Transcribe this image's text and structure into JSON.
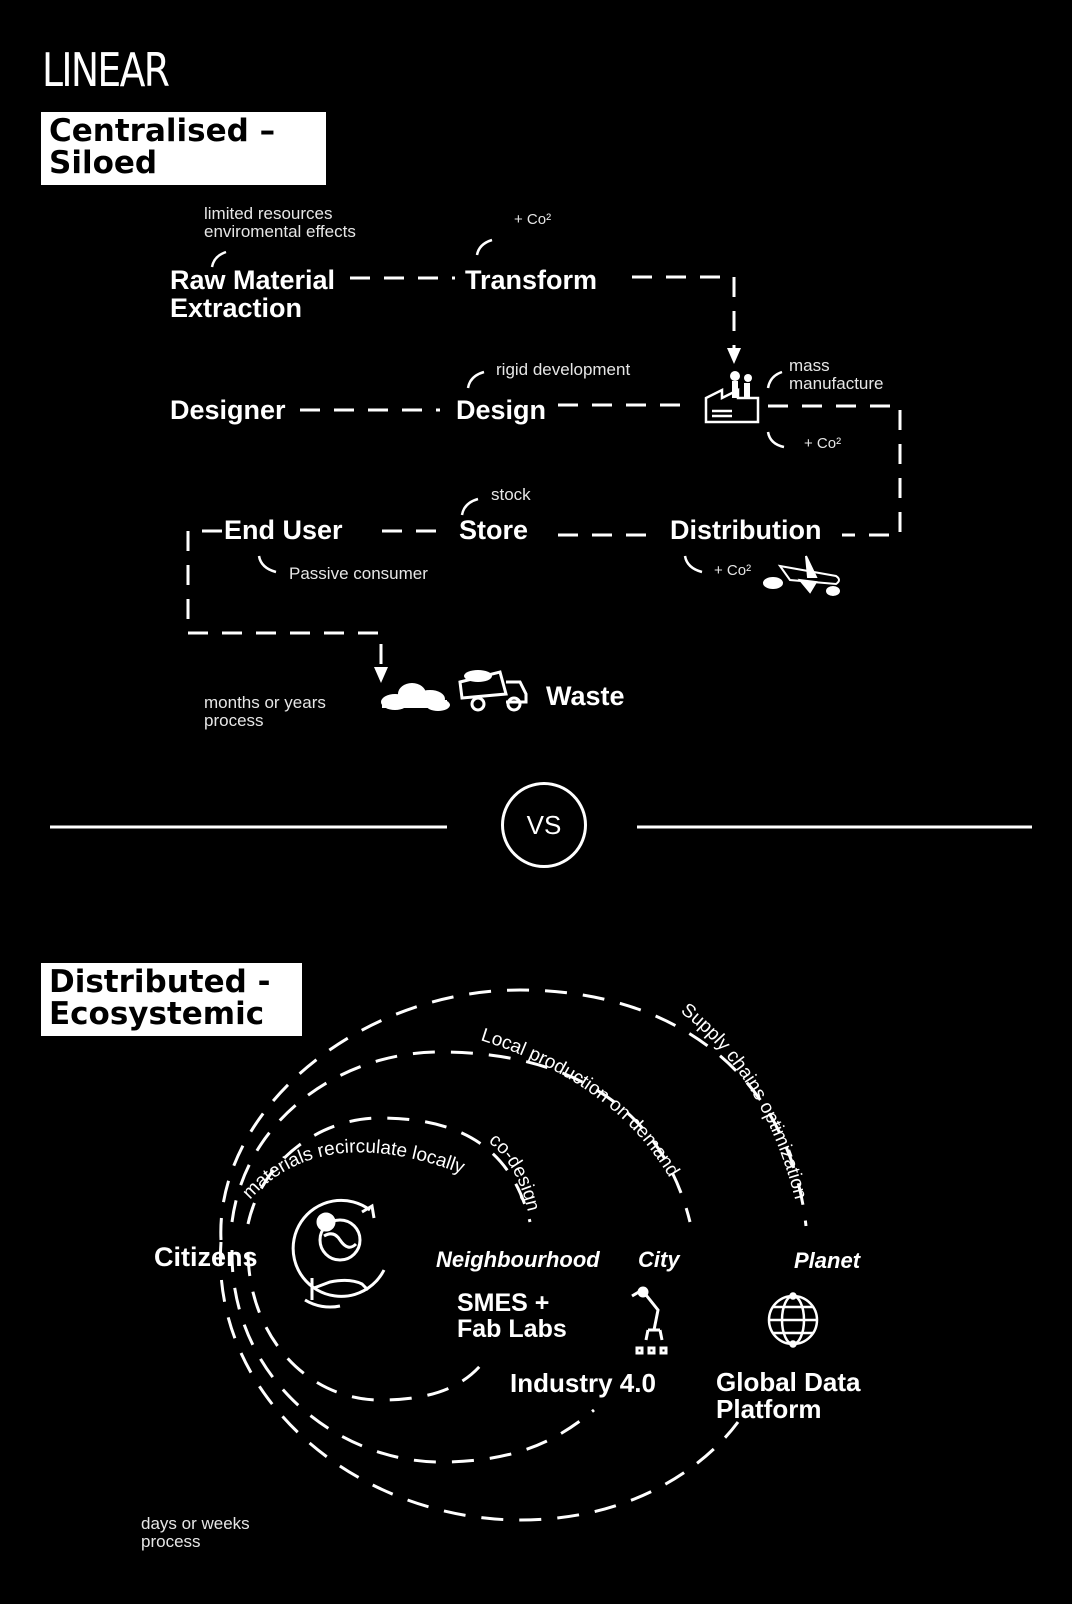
{
  "linear": {
    "title": "LINEAR",
    "label_line1": "Centralised –",
    "label_line2": "Siloed",
    "nodes": {
      "raw_line1": "Raw Material",
      "raw_line2": "Extraction",
      "transform": "Transform",
      "designer": "Designer",
      "design": "Design",
      "end_user": "End User",
      "store": "Store",
      "distribution": "Distribution",
      "waste": "Waste"
    },
    "notes": {
      "limited_line1": "limited resources",
      "limited_line2": "enviromental effects",
      "co2_transform": "+ Co²",
      "rigid": "rigid development",
      "mass_line1": "mass",
      "mass_line2": "manufacture",
      "co2_factory": "+ Co²",
      "stock": "stock",
      "passive": "Passive consumer",
      "co2_distribution": "+ Co²",
      "time_line1": "months or years",
      "time_line2": "process"
    }
  },
  "vs": "VS",
  "distributed": {
    "label_line1": "Distributed -",
    "label_line2": "Ecosystemic",
    "arcs": {
      "supply": "Supply chains optimization",
      "local": "Local production on demand",
      "materials": "materials recirculate locally",
      "codesign": "co-design"
    },
    "scales": {
      "neighbourhood": "Neighbourhood",
      "city": "City",
      "planet": "Planet"
    },
    "nodes": {
      "citizens": "Citizens",
      "smes_line1": "SMES +",
      "smes_line2": "Fab Labs",
      "industry": "Industry 4.0",
      "global_line1": "Global Data",
      "global_line2": "Platform"
    },
    "time_line1": "days or weeks",
    "time_line2": "process"
  },
  "icons": [
    "factory-icon",
    "airplane-icon",
    "truck-icon",
    "cloud-icon",
    "globe-hand-icon",
    "robot-arm-icon",
    "globe-icon"
  ]
}
